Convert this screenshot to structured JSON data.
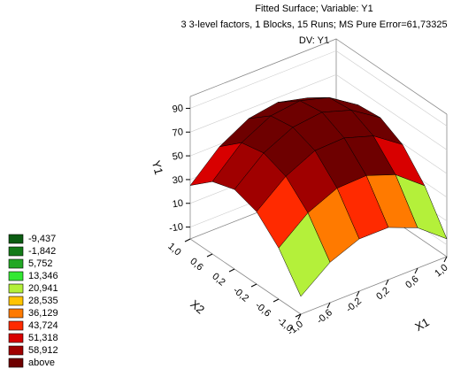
{
  "chart_data": {
    "type": "surface",
    "title": "Fitted Surface; Variable: Y1",
    "subtitle": "3 3-level factors, 1 Blocks, 15 Runs; MS Pure Error=61,73325",
    "dv_label": "DV: Y1",
    "x_label": "X1",
    "y_label": "X2",
    "z_label": "Y1",
    "xlim": [
      -1,
      1
    ],
    "ylim": [
      -1,
      1
    ],
    "zlim": [
      -20,
      100
    ],
    "xticks": [
      {
        "value": -1,
        "label": "-1,0"
      },
      {
        "value": -0.6,
        "label": "-0,6"
      },
      {
        "value": -0.2,
        "label": "-0,2"
      },
      {
        "value": 0.2,
        "label": "0,2"
      },
      {
        "value": 0.6,
        "label": "0,6"
      },
      {
        "value": 1,
        "label": "1,0"
      }
    ],
    "yticks": [
      {
        "value": -1,
        "label": "-1,0"
      },
      {
        "value": -0.6,
        "label": "-0,6"
      },
      {
        "value": -0.2,
        "label": "-0,2"
      },
      {
        "value": 0.2,
        "label": "0,2"
      },
      {
        "value": 0.6,
        "label": "0,6"
      },
      {
        "value": 1,
        "label": "1,0"
      }
    ],
    "zticks": [
      -10,
      10,
      30,
      50,
      70,
      90
    ],
    "x": [
      -1,
      -0.6,
      -0.2,
      0.2,
      0.6,
      1
    ],
    "y": [
      -1,
      -0.6,
      -0.2,
      0.2,
      0.6,
      1
    ],
    "z": [
      [
        -5,
        23,
        41,
        47,
        41,
        25
      ],
      [
        14,
        43,
        61,
        68,
        64,
        48
      ],
      [
        24,
        54,
        73,
        80,
        77,
        62
      ],
      [
        24,
        55,
        74,
        83,
        80,
        66
      ],
      [
        14,
        46,
        66,
        75,
        73,
        60
      ],
      [
        -5,
        27,
        49,
        59,
        57,
        45
      ]
    ],
    "levels": [
      {
        "value": -9.437,
        "label": "-9,437",
        "color": "#0b5c12"
      },
      {
        "value": -1.842,
        "label": "-1,842",
        "color": "#137a18"
      },
      {
        "value": 5.752,
        "label": "5,752",
        "color": "#22a825"
      },
      {
        "value": 13.346,
        "label": "13,346",
        "color": "#33e833"
      },
      {
        "value": 20.941,
        "label": "20,941",
        "color": "#b4f03a"
      },
      {
        "value": 28.535,
        "label": "28,535",
        "color": "#ffc400"
      },
      {
        "value": 36.129,
        "label": "36,129",
        "color": "#ff7a00"
      },
      {
        "value": 43.724,
        "label": "43,724",
        "color": "#ff2a00"
      },
      {
        "value": 51.318,
        "label": "51,318",
        "color": "#d80000"
      },
      {
        "value": 58.912,
        "label": "58,912",
        "color": "#a00000"
      }
    ],
    "above_label": "above",
    "above_color": "#6e0000"
  }
}
